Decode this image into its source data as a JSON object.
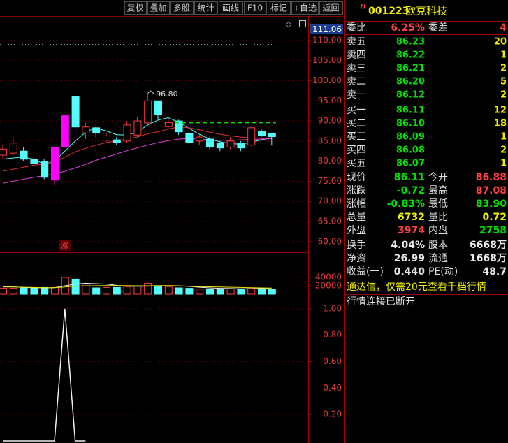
{
  "toolbar": [
    "复权",
    "叠加",
    "多股",
    "统计",
    "画线",
    "F10",
    "标记",
    "+自选",
    "返回"
  ],
  "price_chart": {
    "current_label": "111.06",
    "high_label": "96.80",
    "signal_label": "涨",
    "ylim": [
      57.7,
      115.9
    ],
    "yticks": [
      {
        "value": 110,
        "label": "110.00"
      },
      {
        "value": 105,
        "label": "105.00"
      },
      {
        "value": 100,
        "label": "100.00"
      },
      {
        "value": 95,
        "label": "95.00"
      },
      {
        "value": 90,
        "label": "90.00"
      },
      {
        "value": 85,
        "label": "85.00"
      },
      {
        "value": 80,
        "label": "80.00"
      },
      {
        "value": 75,
        "label": "75.00"
      },
      {
        "value": 70,
        "label": "70.00"
      },
      {
        "value": 65,
        "label": "65.00"
      },
      {
        "value": 60,
        "label": "60.00"
      }
    ],
    "up_color": "#ff3c3c",
    "down_color": "#54fcfc",
    "highlight_color": "#ff00ff",
    "highlight": [
      5,
      6
    ],
    "open": [
      81.5,
      82,
      82.5,
      80.5,
      80,
      75.5,
      83.5,
      96,
      87,
      88.3,
      85.2,
      85.3,
      85,
      86.5,
      89.5,
      95,
      88.6,
      90,
      86.9,
      85,
      85.5,
      84.4,
      83.5,
      84.5,
      84,
      87.5,
      86.88
    ],
    "close": [
      83,
      84.5,
      80.5,
      79.5,
      76,
      83.5,
      91.3,
      88.5,
      88.5,
      87,
      86.3,
      84.6,
      89,
      90,
      95,
      91.5,
      89.6,
      87.3,
      84.7,
      86,
      83.6,
      83.3,
      85,
      83.3,
      88.3,
      86.3,
      86.11
    ],
    "high": [
      84,
      86,
      83.5,
      81,
      80.5,
      83.5,
      91.3,
      96.5,
      89.5,
      88.8,
      87,
      86,
      90,
      91,
      96.8,
      95,
      90.5,
      90.3,
      87.5,
      86.5,
      86,
      85,
      86,
      85,
      88.5,
      88,
      87.08
    ],
    "low": [
      80.5,
      81.5,
      80,
      79,
      75.5,
      74,
      83.5,
      87.5,
      85.5,
      86,
      84.5,
      84,
      84.5,
      86,
      88.8,
      90.5,
      88,
      86.5,
      84,
      84,
      83,
      82.5,
      83,
      82.5,
      83.8,
      86,
      83.9
    ],
    "lines": [
      {
        "color": "#54fcfc",
        "values": [
          80.5,
          80.8,
          81,
          80.5,
          79.2,
          80,
          82.5,
          85,
          87.2,
          88.3,
          87.5,
          86.6,
          86.5,
          87.2,
          89,
          90.2,
          90.8,
          89.7,
          88.2,
          86.7,
          85.5,
          84.8,
          84.4,
          84.2,
          84.7,
          85.3,
          85.8
        ]
      },
      {
        "color": "#e03030",
        "values": [
          77.5,
          78,
          78.5,
          79,
          79.3,
          79.8,
          81,
          82.3,
          83.2,
          84,
          84.6,
          85.1,
          85.5,
          86,
          86.8,
          87.3,
          88,
          88.5,
          88.3,
          87.8,
          87.2,
          86.7,
          86.3,
          86,
          85.8,
          85.7,
          85.8
        ]
      },
      {
        "color": "#e040e0",
        "values": [
          74.5,
          75,
          75.5,
          76,
          76.4,
          76.8,
          77.5,
          78.3,
          79.2,
          80.2,
          81,
          81.8,
          82.6,
          83.3,
          84,
          84.6,
          85.1,
          85.5,
          85.6,
          85.5,
          85.3,
          85.2,
          85.2,
          85.3,
          85.4,
          85.5,
          85.6
        ]
      }
    ],
    "dashed_line": {
      "value": 89.6,
      "color": "#00e000"
    }
  },
  "volume_chart": {
    "ylim": [
      0,
      95000
    ],
    "yticks": [
      40000,
      20000
    ],
    "values": [
      14000,
      14000,
      15000,
      15000,
      16000,
      16000,
      40000,
      36000,
      24000,
      15000,
      16000,
      16000,
      18000,
      20000,
      26000,
      20000,
      18000,
      15000,
      14000,
      12000,
      11000,
      12000,
      13000,
      12000,
      15000,
      14000,
      11000
    ],
    "lines": [
      {
        "color": "#e8e8e8",
        "values": [
          18000,
          17500,
          16000,
          15500,
          15000,
          15500,
          20000,
          24000,
          26000,
          25000,
          24000,
          21000,
          19000,
          18500,
          19000,
          19500,
          20000,
          19500,
          18500,
          16500,
          15000,
          14000,
          13500,
          13000,
          13000,
          13500,
          13000
        ]
      },
      {
        "color": "#e8e800",
        "values": [
          17000,
          17000,
          16500,
          16000,
          15500,
          15500,
          17000,
          19000,
          20000,
          20000,
          20500,
          20500,
          20500,
          20000,
          20000,
          20500,
          20500,
          20000,
          19000,
          18000,
          17500,
          17000,
          16500,
          16000,
          15500,
          15000,
          14500
        ]
      }
    ]
  },
  "indicator_chart": {
    "ylim": [
      0,
      1.1
    ],
    "yticks": [
      {
        "value": 1,
        "label": "1.00"
      },
      {
        "value": 0.8,
        "label": "0.80"
      },
      {
        "value": 0.6,
        "label": "0.60"
      },
      {
        "value": 0.4,
        "label": "0.40"
      },
      {
        "value": 0.2,
        "label": "0.20"
      }
    ],
    "color": "#f0f0f0",
    "values": [
      0,
      0,
      0,
      0,
      0,
      0,
      1,
      0,
      0
    ]
  },
  "quote": {
    "flag": "N",
    "code": "001223",
    "name": "欧克科技",
    "price_color": "#00e000",
    "volume_color": "#f0f000",
    "ratio_row": [
      {
        "label": "委比",
        "value": "6.25%",
        "color": "#ff4040"
      },
      {
        "label": "委差",
        "value": "4",
        "color": "#ff4040"
      }
    ],
    "asks": [
      {
        "label": "卖五",
        "price": "86.23",
        "volume": "20"
      },
      {
        "label": "卖四",
        "price": "86.22",
        "volume": "1"
      },
      {
        "label": "卖三",
        "price": "86.21",
        "volume": "2"
      },
      {
        "label": "卖二",
        "price": "86.20",
        "volume": "5"
      },
      {
        "label": "卖一",
        "price": "86.12",
        "volume": "2"
      }
    ],
    "bids": [
      {
        "label": "买一",
        "price": "86.11",
        "volume": "12"
      },
      {
        "label": "买二",
        "price": "86.10",
        "volume": "18"
      },
      {
        "label": "买三",
        "price": "86.09",
        "volume": "1"
      },
      {
        "label": "买四",
        "price": "86.08",
        "volume": "2"
      },
      {
        "label": "买五",
        "price": "86.07",
        "volume": "1"
      }
    ],
    "stats": [
      [
        {
          "label": "现价",
          "value": "86.11",
          "color": "#00e000"
        },
        {
          "label": "今开",
          "value": "86.88",
          "color": "#ff4040"
        }
      ],
      [
        {
          "label": "涨跌",
          "value": "-0.72",
          "color": "#00e000"
        },
        {
          "label": "最高",
          "value": "87.08",
          "color": "#ff4040"
        }
      ],
      [
        {
          "label": "涨幅",
          "value": "-0.83%",
          "color": "#00e000"
        },
        {
          "label": "最低",
          "value": "83.90",
          "color": "#00e000"
        }
      ],
      [
        {
          "label": "总量",
          "value": "6732",
          "color": "#f0f000"
        },
        {
          "label": "量比",
          "value": "0.72",
          "color": "#f0f000"
        }
      ],
      [
        {
          "label": "外盘",
          "value": "3974",
          "color": "#ff4040"
        },
        {
          "label": "内盘",
          "value": "2758",
          "color": "#00e000"
        }
      ]
    ],
    "finance": [
      [
        {
          "label": "换手",
          "value": "4.04%",
          "color": "#e8e8e8"
        },
        {
          "label": "股本",
          "value": "6668万",
          "color": "#e8e8e8"
        }
      ],
      [
        {
          "label": "净资",
          "value": "26.99",
          "color": "#e8e8e8"
        },
        {
          "label": "流通",
          "value": "1668万",
          "color": "#e8e8e8"
        }
      ],
      [
        {
          "label": "收益(一)",
          "value": "0.440",
          "color": "#e8e8e8"
        },
        {
          "label": "PE(动)",
          "value": "48.7",
          "color": "#e8e8e8"
        }
      ]
    ],
    "notice": "通达信，仅需20元查看千档行情",
    "status": "行情连接已断开"
  }
}
